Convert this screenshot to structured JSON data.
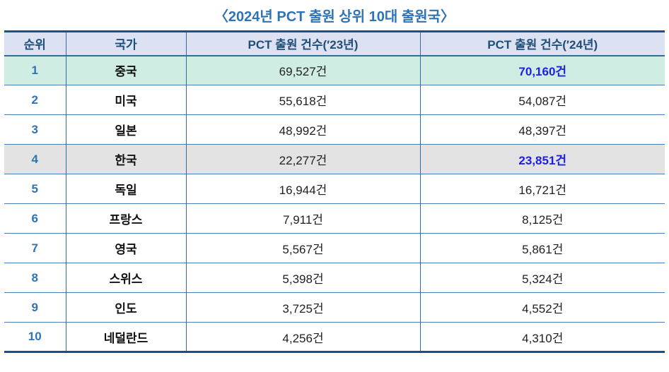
{
  "title": "〈2024년 PCT 출원 상위 10대 출원국〉",
  "table": {
    "headers": [
      "순위",
      "국가",
      "PCT 출원 건수(′23년)",
      "PCT 출원 건수(′24년)"
    ],
    "rows": [
      {
        "rank": "1",
        "country": "중국",
        "y2023": "69,527건",
        "y2024": "70,160건"
      },
      {
        "rank": "2",
        "country": "미국",
        "y2023": "55,618건",
        "y2024": "54,087건"
      },
      {
        "rank": "3",
        "country": "일본",
        "y2023": "48,992건",
        "y2024": "48,397건"
      },
      {
        "rank": "4",
        "country": "한국",
        "y2023": "22,277건",
        "y2024": "23,851건"
      },
      {
        "rank": "5",
        "country": "독일",
        "y2023": "16,944건",
        "y2024": "16,721건"
      },
      {
        "rank": "6",
        "country": "프랑스",
        "y2023": "7,911건",
        "y2024": "8,125건"
      },
      {
        "rank": "7",
        "country": "영국",
        "y2023": "5,567건",
        "y2024": "5,861건"
      },
      {
        "rank": "8",
        "country": "스위스",
        "y2023": "5,398건",
        "y2024": "5,324건"
      },
      {
        "rank": "9",
        "country": "인도",
        "y2023": "3,725건",
        "y2024": "4,552건"
      },
      {
        "rank": "10",
        "country": "네덜란드",
        "y2023": "4,256건",
        "y2024": "4,310건"
      }
    ],
    "highlighted_rows": {
      "green_row_rank": "1",
      "gray_row_rank": "4"
    },
    "highlighted_values": [
      "70,160건",
      "23,851건"
    ]
  },
  "chart_data": {
    "type": "table",
    "title": "2024년 PCT 출원 상위 10대 출원국",
    "categories": [
      "중국",
      "미국",
      "일본",
      "한국",
      "독일",
      "프랑스",
      "영국",
      "스위스",
      "인도",
      "네덜란드"
    ],
    "series": [
      {
        "name": "PCT 출원 건수(′23년)",
        "values": [
          69527,
          55618,
          48992,
          22277,
          16944,
          7911,
          5567,
          5398,
          3725,
          4256
        ]
      },
      {
        "name": "PCT 출원 건수(′24년)",
        "values": [
          70160,
          54087,
          48397,
          23851,
          16721,
          8125,
          5861,
          5324,
          4552,
          4310
        ]
      }
    ],
    "unit": "건"
  },
  "colors": {
    "title-blue": "#2e74b5",
    "header-text": "#1f4e79",
    "header-bg": "#dce2f1",
    "row1-bg": "#cfede2",
    "row4-bg": "#e3e3e3",
    "hl-blue": "#1e1ee6",
    "border-dark": "#1b4f8a",
    "border-mid": "#2e6da4",
    "row-line": "#4a7db6",
    "value-text": "#1f1f1f",
    "country-text": "#111111"
  }
}
